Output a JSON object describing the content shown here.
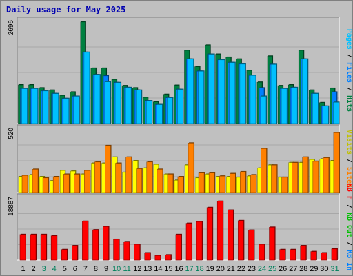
{
  "chart_data": {
    "type": "bar",
    "title": "Daily usage for May 2025",
    "colors": {
      "hits": "#008040",
      "files": "#0080ff",
      "pages": "#00c0ff",
      "visits": "#ffff00",
      "sites": "#ff8000",
      "kb_in": "#0080ff",
      "kb_out": "#00c000",
      "kb_f": "#ff0000",
      "weekend": "#00805c",
      "weekday": "#000000"
    },
    "categories": [
      "1",
      "2",
      "3",
      "4",
      "5",
      "6",
      "7",
      "8",
      "9",
      "10",
      "11",
      "12",
      "13",
      "14",
      "15",
      "16",
      "17",
      "18",
      "19",
      "20",
      "21",
      "22",
      "23",
      "24",
      "25",
      "26",
      "27",
      "28",
      "29",
      "30",
      "31"
    ],
    "weekend_days": [
      "3",
      "4",
      "10",
      "11",
      "17",
      "18",
      "24",
      "25",
      "31"
    ],
    "panels": [
      {
        "id": "top",
        "ymax_label": "2696",
        "ymax": 2696,
        "right_label_parts": [
          {
            "text": "Pages",
            "color": "#00c0ff"
          },
          {
            "text": " / ",
            "color": "#000000"
          },
          {
            "text": "Files",
            "color": "#0080ff"
          },
          {
            "text": " / ",
            "color": "#000000"
          },
          {
            "text": "Hits",
            "color": "#008040"
          }
        ],
        "series": [
          {
            "name": "Hits",
            "values": [
              1020,
              1020,
              940,
              880,
              740,
              830,
              2680,
              1460,
              1460,
              1160,
              1000,
              940,
              690,
              570,
              770,
              1010,
              1930,
              1500,
              2070,
              1830,
              1750,
              1700,
              1400,
              1090,
              1780,
              1000,
              1020,
              1930,
              880,
              550,
              930
            ]
          },
          {
            "name": "Files",
            "values": [
              920,
              920,
              860,
              790,
              660,
              720,
              1880,
              1290,
              1260,
              1080,
              950,
              880,
              600,
              500,
              680,
              900,
              1700,
              1380,
              1830,
              1680,
              1610,
              1570,
              1270,
              940,
              1560,
              920,
              950,
              1700,
              790,
              460,
              830
            ]
          },
          {
            "name": "Pages",
            "values": [
              920,
              920,
              860,
              790,
              660,
              720,
              1880,
              1290,
              1100,
              1080,
              950,
              880,
              600,
              500,
              680,
              900,
              1700,
              1380,
              1830,
              1680,
              1610,
              1570,
              1270,
              720,
              1560,
              920,
              950,
              1700,
              790,
              460,
              560
            ]
          }
        ]
      },
      {
        "id": "middle",
        "ymax_label": "520",
        "ymax": 520,
        "right_label_parts": [
          {
            "text": "Visits",
            "color": "#c0c000"
          },
          {
            "text": " / ",
            "color": "#000000"
          },
          {
            "text": "Sites",
            "color": "#ff8000"
          }
        ],
        "series": [
          {
            "name": "Visits",
            "values": [
              130,
              145,
              130,
              95,
              180,
              175,
              150,
              240,
              240,
              290,
              165,
              260,
              200,
              230,
              150,
              100,
              225,
              120,
              150,
              130,
              130,
              125,
              135,
              200,
              225,
              125,
              245,
              245,
              270,
              275,
              260
            ]
          },
          {
            "name": "Sites",
            "values": [
              140,
              190,
              120,
              130,
              150,
              150,
              180,
              250,
              385,
              240,
              290,
              195,
              250,
              190,
              150,
              130,
              405,
              160,
              160,
              135,
              155,
              170,
              145,
              360,
              225,
              125,
              245,
              290,
              255,
              285,
              490
            ]
          }
        ]
      },
      {
        "id": "bottom",
        "ymax_label": "18887",
        "ymax": 18887,
        "right_label_parts": [
          {
            "text": "KB F",
            "color": "#ff0000"
          },
          {
            "text": " / ",
            "color": "#000000"
          },
          {
            "text": "KB Out",
            "color": "#00c000"
          },
          {
            "text": " / ",
            "color": "#000000"
          },
          {
            "text": "KB In",
            "color": "#0080ff"
          }
        ],
        "series": [
          {
            "name": "KB F",
            "values": [
              7800,
              7800,
              7800,
              7400,
              3200,
              4400,
              11800,
              9200,
              10200,
              6300,
              5600,
              4800,
              2200,
              1400,
              1600,
              7800,
              11200,
              11700,
              16000,
              17900,
              15200,
              12000,
              9100,
              4800,
              10000,
              3200,
              3200,
              4400,
              2600,
              2200,
              3400
            ]
          }
        ]
      }
    ]
  }
}
